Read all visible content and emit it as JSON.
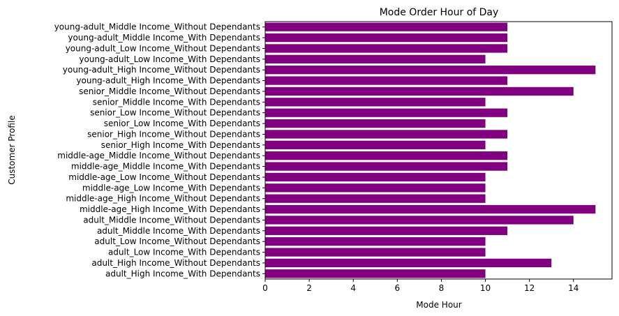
{
  "chart_data": {
    "type": "bar",
    "orientation": "horizontal",
    "title": "Mode Order Hour of Day",
    "xlabel": "Mode Hour",
    "ylabel": "Customer Profile",
    "xlim": [
      0,
      15.75
    ],
    "xticks": [
      0,
      2,
      4,
      6,
      8,
      10,
      12,
      14
    ],
    "grid": false,
    "bar_color": "#800080",
    "categories": [
      "young-adult_Middle Income_Without Dependants",
      "young-adult_Middle Income_With Dependants",
      "young-adult_Low Income_Without Dependants",
      "young-adult_Low Income_With Dependants",
      "young-adult_High Income_Without Dependants",
      "young-adult_High Income_With Dependants",
      "senior_Middle Income_Without Dependants",
      "senior_Middle Income_With Dependants",
      "senior_Low Income_Without Dependants",
      "senior_Low Income_With Dependants",
      "senior_High Income_Without Dependants",
      "senior_High Income_With Dependants",
      "middle-age_Middle Income_Without Dependants",
      "middle-age_Middle Income_With Dependants",
      "middle-age_Low Income_Without Dependants",
      "middle-age_Low Income_With Dependants",
      "middle-age_High Income_Without Dependants",
      "middle-age_High Income_With Dependants",
      "adult_Middle Income_Without Dependants",
      "adult_Middle Income_With Dependants",
      "adult_Low Income_Without Dependants",
      "adult_Low Income_With Dependants",
      "adult_High Income_Without Dependants",
      "adult_High Income_With Dependants"
    ],
    "values": [
      11,
      11,
      11,
      10,
      15,
      11,
      14,
      10,
      11,
      10,
      11,
      10,
      11,
      11,
      10,
      10,
      10,
      15,
      14,
      11,
      10,
      10,
      13,
      10
    ]
  }
}
